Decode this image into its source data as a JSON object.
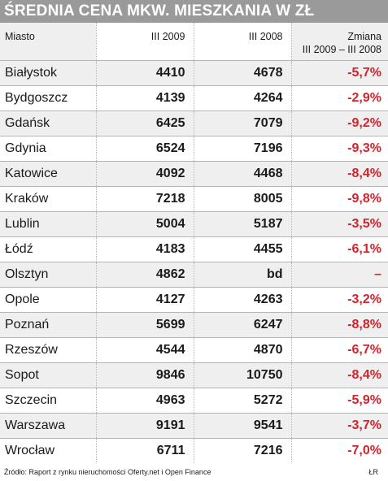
{
  "title": "ŚREDNIA CENA MKW. MIESZKANIA W ZŁ",
  "header": {
    "city": "Miasto",
    "col_2009": "III 2009",
    "col_2008": "III 2008",
    "change_line1": "Zmiana",
    "change_line2": "III 2009 – III 2008"
  },
  "rows": [
    {
      "city": "Białystok",
      "v2009": "4410",
      "v2008": "4678",
      "change": "-5,7%"
    },
    {
      "city": "Bydgoszcz",
      "v2009": "4139",
      "v2008": "4264",
      "change": "-2,9%"
    },
    {
      "city": "Gdańsk",
      "v2009": "6425",
      "v2008": "7079",
      "change": "-9,2%"
    },
    {
      "city": "Gdynia",
      "v2009": "6524",
      "v2008": "7196",
      "change": "-9,3%"
    },
    {
      "city": "Katowice",
      "v2009": "4092",
      "v2008": "4468",
      "change": "-8,4%"
    },
    {
      "city": "Kraków",
      "v2009": "7218",
      "v2008": "8005",
      "change": "-9,8%"
    },
    {
      "city": "Lublin",
      "v2009": "5004",
      "v2008": "5187",
      "change": "-3,5%"
    },
    {
      "city": "Łódź",
      "v2009": "4183",
      "v2008": "4455",
      "change": "-6,1%"
    },
    {
      "city": "Olsztyn",
      "v2009": "4862",
      "v2008": "bd",
      "change": "–"
    },
    {
      "city": "Opole",
      "v2009": "4127",
      "v2008": "4263",
      "change": "-3,2%"
    },
    {
      "city": "Poznań",
      "v2009": "5699",
      "v2008": "6247",
      "change": "-8,8%"
    },
    {
      "city": "Rzeszów",
      "v2009": "4544",
      "v2008": "4870",
      "change": "-6,7%"
    },
    {
      "city": "Sopot",
      "v2009": "9846",
      "v2008": "10750",
      "change": "-8,4%"
    },
    {
      "city": "Szczecin",
      "v2009": "4963",
      "v2008": "5272",
      "change": "-5,9%"
    },
    {
      "city": "Warszawa",
      "v2009": "9191",
      "v2008": "9541",
      "change": "-3,7%"
    },
    {
      "city": "Wrocław",
      "v2009": "6711",
      "v2008": "7216",
      "change": "-7,0%"
    }
  ],
  "footer": {
    "source": "Źródło: Raport z rynku nieruchomości Oferty.net i Open Finance",
    "credit": "ŁR"
  },
  "colors": {
    "title_bg": "#9a9a9a",
    "stripe": "#efefef",
    "negative": "#d4232b"
  }
}
